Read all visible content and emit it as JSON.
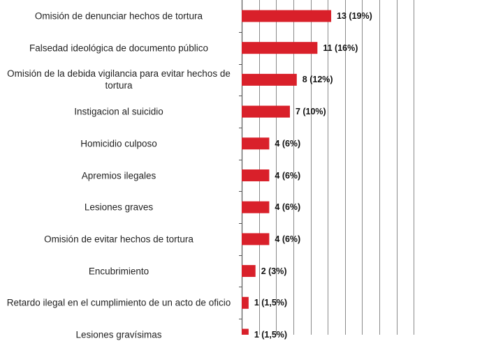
{
  "chart_data": {
    "type": "bar",
    "orientation": "horizontal",
    "categories": [
      "Omisión de denunciar hechos de tortura",
      "Falsedad ideológica de documento público",
      "Omisión de la debida vigilancia para evitar hechos de tortura",
      "Instigacion al suicidio",
      "Homicidio culposo",
      "Apremios ilegales",
      "Lesiones graves",
      "Omisión de evitar hechos de tortura",
      "Encubrimiento",
      "Retardo ilegal en el cumplimiento de un acto de oficio",
      "Lesiones gravísimas"
    ],
    "values": [
      13,
      11,
      8,
      7,
      4,
      4,
      4,
      4,
      2,
      1,
      1
    ],
    "value_labels": [
      "13 (19%)",
      "11 (16%)",
      "8 (12%)",
      "7 (10%)",
      "4 (6%)",
      "4 (6%)",
      "4 (6%)",
      "4 (6%)",
      "2 (3%)",
      "1 (1,5%)",
      "1 (1,5%)"
    ],
    "xlim": [
      0,
      25
    ],
    "grid": true,
    "bar_color": "#d9202a",
    "title": "",
    "xlabel": "",
    "ylabel": ""
  }
}
